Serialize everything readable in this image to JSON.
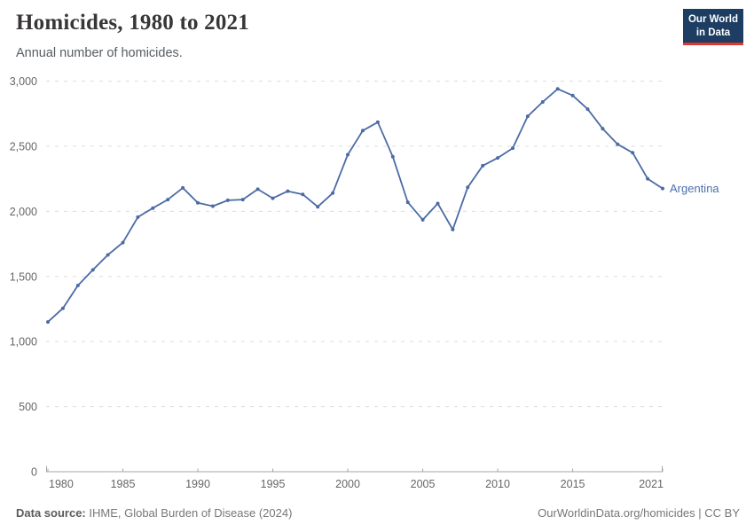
{
  "header": {
    "title": "Homicides, 1980 to 2021",
    "subtitle": "Annual number of homicides."
  },
  "logo": {
    "line1": "Our World",
    "line2": "in Data",
    "bg_color": "#1d3d63",
    "accent_color": "#e0362d"
  },
  "chart_data": {
    "type": "line",
    "title": "Homicides, 1980 to 2021",
    "xlabel": "",
    "ylabel": "",
    "x": [
      1980,
      1981,
      1982,
      1983,
      1984,
      1985,
      1986,
      1987,
      1988,
      1989,
      1990,
      1991,
      1992,
      1993,
      1994,
      1995,
      1996,
      1997,
      1998,
      1999,
      2000,
      2001,
      2002,
      2003,
      2004,
      2005,
      2006,
      2007,
      2008,
      2009,
      2010,
      2011,
      2012,
      2013,
      2014,
      2015,
      2016,
      2017,
      2018,
      2019,
      2020,
      2021
    ],
    "series": [
      {
        "name": "Argentina",
        "color": "#4c6ba5",
        "label_color": "#4a70ad",
        "values": [
          1150,
          1255,
          1430,
          1550,
          1665,
          1760,
          1955,
          2025,
          2090,
          2180,
          2065,
          2040,
          2085,
          2090,
          2170,
          2100,
          2155,
          2130,
          2035,
          2140,
          2435,
          2620,
          2685,
          2420,
          2070,
          1935,
          2060,
          1860,
          2185,
          2350,
          2410,
          2485,
          2730,
          2840,
          2940,
          2890,
          2785,
          2635,
          2515,
          2450,
          2250,
          2175
        ]
      }
    ],
    "xlim": [
      1980,
      2021
    ],
    "ylim": [
      0,
      3000
    ],
    "yticks": [
      0,
      500,
      1000,
      1500,
      2000,
      2500,
      3000
    ],
    "xticks": [
      1980,
      1985,
      1990,
      1995,
      2000,
      2005,
      2010,
      2015,
      2021
    ],
    "grid": "horizontal dashed",
    "legend": "end-of-line entity label",
    "gridline_color": "#dddddd",
    "axis_color": "#a5a5a5",
    "tick_label_color": "#666666"
  },
  "footer": {
    "datasource_label": "Data source:",
    "datasource_text": "IHME, Global Burden of Disease (2024)",
    "credit": "OurWorldinData.org/homicides | CC BY"
  }
}
